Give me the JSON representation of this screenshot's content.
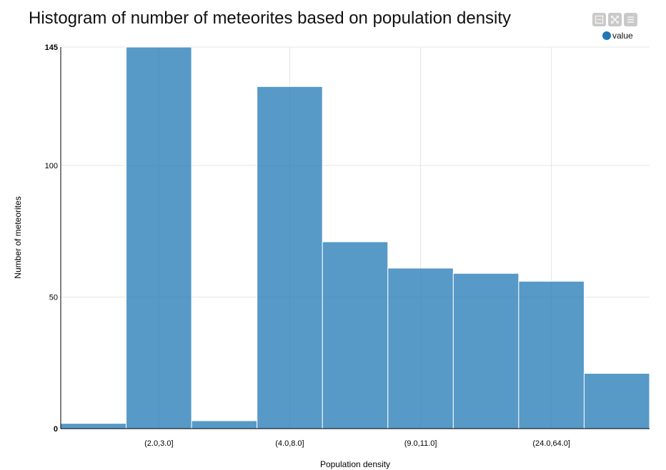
{
  "chart_data": {
    "type": "bar",
    "title": "Histogram of number of meteorites based on population density",
    "xlabel": "Population density",
    "ylabel": "Number of meteorites",
    "series": [
      {
        "name": "value",
        "values": [
          2,
          145,
          3,
          130,
          71,
          61,
          59,
          56,
          21
        ]
      }
    ],
    "x_tick_labels": [
      "(2.0,3.0]",
      "(4.0,8.0]",
      "(9.0,11.0]",
      "(24.0,64.0]"
    ],
    "y_ticks": [
      0,
      50,
      100,
      145
    ],
    "ylim": [
      0,
      145
    ],
    "grid": true,
    "legend_position": "top-right",
    "bar_color": "#1f77b4"
  },
  "toolbar": {
    "icons": [
      "minimize-icon",
      "fullscreen-icon",
      "menu-icon"
    ]
  }
}
